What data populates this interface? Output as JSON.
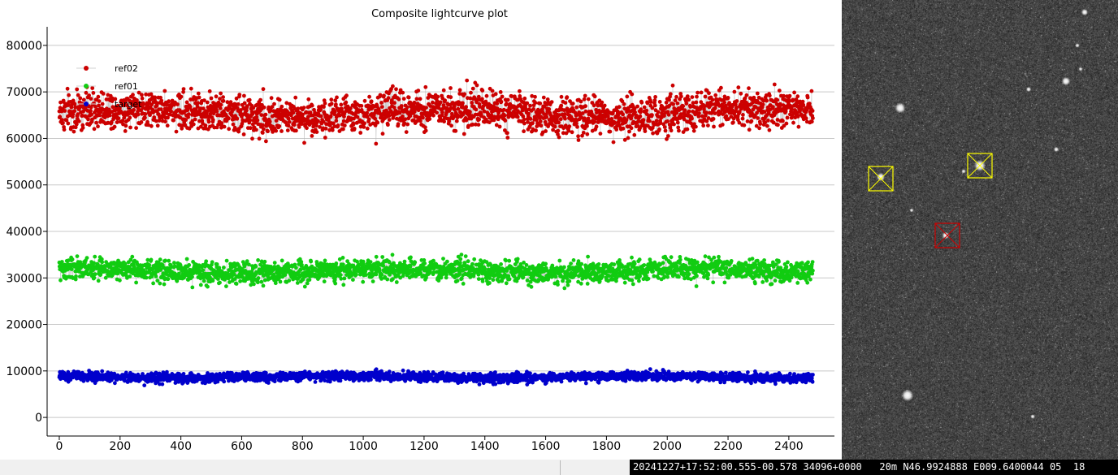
{
  "chart_data": {
    "type": "scatter",
    "title": "Composite lightcurve plot",
    "xlabel": "",
    "ylabel": "",
    "xlim": [
      -40,
      2550
    ],
    "ylim": [
      -4000,
      84000
    ],
    "x_ticks": [
      0,
      200,
      400,
      600,
      800,
      1000,
      1200,
      1400,
      1600,
      1800,
      2000,
      2200,
      2400
    ],
    "y_ticks": [
      0,
      10000,
      20000,
      30000,
      40000,
      50000,
      60000,
      70000,
      80000
    ],
    "grid": "horizontal",
    "legend_position": "top-left",
    "series": [
      {
        "name": "ref02",
        "color": "#cc0000",
        "n_points": 2480,
        "mean": 65500,
        "spread": 3600,
        "min": 51000,
        "max": 80000,
        "connected": true
      },
      {
        "name": "ref01",
        "color": "#11cc11",
        "n_points": 2480,
        "mean": 31500,
        "spread": 2000,
        "min": 24500,
        "max": 38500,
        "connected": true
      },
      {
        "name": "target",
        "color": "#0000cc",
        "n_points": 2480,
        "mean": 8700,
        "spread": 900,
        "min": 6000,
        "max": 12000,
        "connected": true
      }
    ]
  },
  "image_panel": {
    "markers": [
      {
        "color": "#ffff00",
        "shape": "square-x"
      },
      {
        "color": "#ffff00",
        "shape": "square-x"
      },
      {
        "color": "#cc0000",
        "shape": "square-x"
      }
    ]
  },
  "status_bar": {
    "text": "20241227+17:52:00.555-00.578 34096+0000   20m N46.9924888 E009.6400044 05  18"
  }
}
